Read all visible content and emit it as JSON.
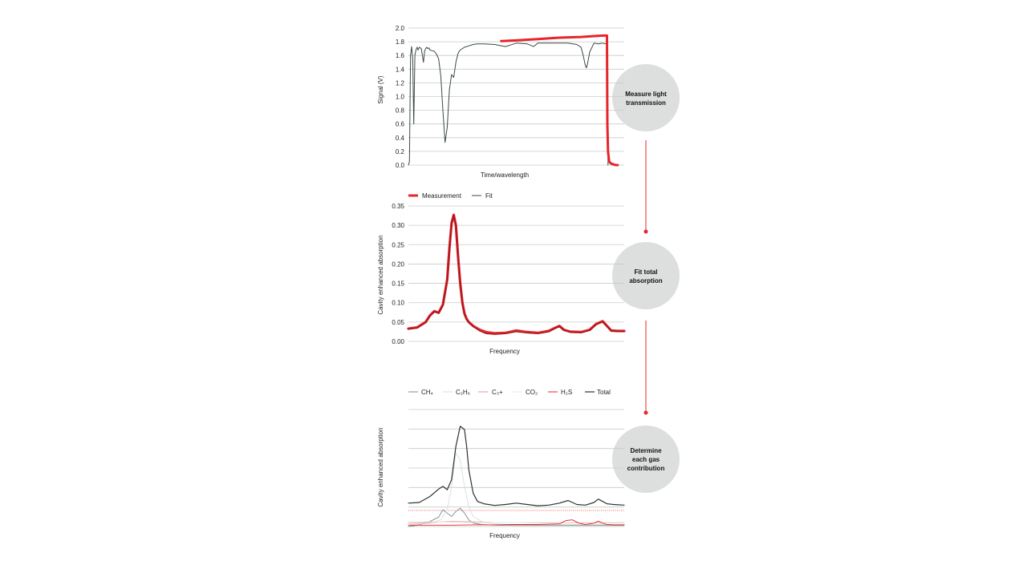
{
  "colors": {
    "measurement": "#e8242b",
    "fit": "#3c4a48",
    "dark_red": "#8b1a1f",
    "grid": "#c6ccca",
    "step_circle": "#dcdfde",
    "connector": "#e8242b"
  },
  "steps": [
    {
      "label_lines": [
        "Measure light",
        "transmission"
      ]
    },
    {
      "label_lines": [
        "Fit total",
        "absorption"
      ]
    },
    {
      "label_lines": [
        "Determine",
        "each gas",
        "contribution"
      ]
    }
  ],
  "chart_data": [
    {
      "type": "line",
      "xlabel": "Time/wavelength",
      "ylabel": "Signal (V)",
      "ylim": [
        0,
        2.0
      ],
      "yticks": [
        "0.0",
        "0.2",
        "0.4",
        "0.6",
        "0.8",
        "1.0",
        "1.2",
        "1.4",
        "1.6",
        "1.8",
        "2.0"
      ],
      "grid": true,
      "xlim": [
        0,
        100
      ],
      "series": [
        {
          "name": "Fit",
          "color": "#3c4a48",
          "x": [
            0,
            0.5,
            1,
            1.5,
            2,
            2.5,
            3,
            3.5,
            4,
            4.5,
            5,
            6,
            7,
            7.5,
            8,
            8.5,
            9,
            9.5,
            10,
            11,
            12,
            13,
            14,
            15,
            16,
            17,
            18,
            19,
            20,
            21,
            22,
            23,
            23.5,
            24,
            24.5,
            25,
            26,
            27,
            28,
            29,
            30,
            32,
            35,
            40,
            45,
            50,
            55,
            58,
            60,
            62,
            64,
            66,
            70,
            74,
            78,
            80,
            81,
            82,
            82.5,
            83,
            84,
            86,
            88,
            90,
            91,
            92,
            92.5
          ],
          "y": [
            0.0,
            0.05,
            1.6,
            1.73,
            1.55,
            0.6,
            1.6,
            1.68,
            1.72,
            1.68,
            1.72,
            1.7,
            1.5,
            1.66,
            1.7,
            1.72,
            1.7,
            1.71,
            1.68,
            1.67,
            1.66,
            1.62,
            1.55,
            1.3,
            0.8,
            0.33,
            0.55,
            1.1,
            1.32,
            1.28,
            1.5,
            1.63,
            1.66,
            1.68,
            1.69,
            1.7,
            1.72,
            1.73,
            1.74,
            1.75,
            1.76,
            1.77,
            1.77,
            1.76,
            1.73,
            1.78,
            1.77,
            1.73,
            1.78,
            1.78,
            1.78,
            1.78,
            1.78,
            1.78,
            1.76,
            1.72,
            1.6,
            1.45,
            1.42,
            1.48,
            1.65,
            1.78,
            1.77,
            1.78,
            1.77,
            1.78,
            0.0
          ]
        },
        {
          "name": "Measurement",
          "color": "#e8242b",
          "x": [
            43,
            50,
            60,
            70,
            80,
            85,
            90,
            92,
            92.2,
            92.5,
            93,
            94,
            95,
            96,
            97
          ],
          "y": [
            1.81,
            1.82,
            1.84,
            1.86,
            1.87,
            1.88,
            1.89,
            1.89,
            0.6,
            0.2,
            0.05,
            0.02,
            0.01,
            0.0,
            0.0
          ]
        }
      ]
    },
    {
      "type": "line",
      "xlabel": "Frequency",
      "ylabel": "Cavity enhanced absorption",
      "ylim": [
        0,
        0.35
      ],
      "yticks": [
        "0.00",
        "0.05",
        "0.10",
        "0.15",
        "0.20",
        "0.25",
        "0.30",
        "0.35"
      ],
      "grid": true,
      "legend_position": "top-left",
      "xlim": [
        0,
        100
      ],
      "series": [
        {
          "name": "Measurement",
          "color": "#e8242b",
          "x": [
            0,
            4,
            8,
            10,
            12,
            14,
            16,
            18,
            19,
            20,
            21,
            22,
            23,
            24,
            25,
            26,
            27,
            28,
            30,
            33,
            36,
            40,
            45,
            50,
            55,
            60,
            65,
            68,
            70,
            72,
            75,
            80,
            84,
            87,
            90,
            92,
            94,
            97,
            100
          ],
          "y": [
            0.033,
            0.036,
            0.05,
            0.067,
            0.078,
            0.074,
            0.095,
            0.16,
            0.24,
            0.305,
            0.327,
            0.3,
            0.22,
            0.15,
            0.1,
            0.072,
            0.058,
            0.05,
            0.04,
            0.03,
            0.024,
            0.021,
            0.022,
            0.028,
            0.024,
            0.022,
            0.027,
            0.035,
            0.04,
            0.03,
            0.025,
            0.024,
            0.03,
            0.045,
            0.052,
            0.04,
            0.028,
            0.027,
            0.027
          ]
        },
        {
          "name": "Fit",
          "color": "#8b1a1f",
          "x": [
            0,
            4,
            8,
            10,
            12,
            14,
            16,
            18,
            19,
            20,
            21,
            22,
            23,
            24,
            25,
            26,
            27,
            28,
            30,
            33,
            36,
            40,
            45,
            50,
            55,
            60,
            65,
            68,
            70,
            72,
            75,
            80,
            84,
            87,
            90,
            92,
            94,
            97,
            100
          ],
          "y": [
            0.032,
            0.035,
            0.049,
            0.066,
            0.077,
            0.073,
            0.094,
            0.158,
            0.238,
            0.303,
            0.326,
            0.298,
            0.218,
            0.148,
            0.099,
            0.071,
            0.057,
            0.049,
            0.039,
            0.027,
            0.02,
            0.018,
            0.02,
            0.025,
            0.022,
            0.02,
            0.025,
            0.034,
            0.039,
            0.029,
            0.024,
            0.023,
            0.029,
            0.044,
            0.051,
            0.039,
            0.027,
            0.026,
            0.026
          ]
        }
      ]
    },
    {
      "type": "line",
      "xlabel": "Frequency",
      "ylabel": "Cavity enhanced absorption",
      "yticks": [],
      "ylim": [
        0,
        0.35
      ],
      "grid": true,
      "legend_position": "top",
      "xlim": [
        0,
        100
      ],
      "series": [
        {
          "name": "CH₄",
          "color": "#7f8c8a",
          "x": [
            0,
            5,
            10,
            14,
            16,
            18,
            20,
            22,
            24,
            26,
            28,
            30,
            34,
            40,
            50,
            60,
            70,
            80,
            90,
            100
          ],
          "y": [
            0.0,
            0.005,
            0.015,
            0.028,
            0.05,
            0.04,
            0.03,
            0.045,
            0.055,
            0.04,
            0.02,
            0.01,
            0.006,
            0.004,
            0.003,
            0.003,
            0.003,
            0.003,
            0.003,
            0.003
          ]
        },
        {
          "name": "C₂H₆",
          "color": "#d9dddc",
          "x": [
            0,
            10,
            15,
            18,
            20,
            22,
            24,
            26,
            28,
            30,
            35,
            40,
            50,
            60,
            70,
            80,
            90,
            100
          ],
          "y": [
            0.005,
            0.01,
            0.02,
            0.05,
            0.12,
            0.22,
            0.2,
            0.12,
            0.06,
            0.03,
            0.012,
            0.008,
            0.006,
            0.006,
            0.006,
            0.006,
            0.006,
            0.006
          ]
        },
        {
          "name": "C₃+",
          "color": "#e59497",
          "x": [
            0,
            10,
            20,
            30,
            40,
            50,
            60,
            70,
            80,
            90,
            100
          ],
          "y": [
            0.01,
            0.012,
            0.015,
            0.014,
            0.012,
            0.012,
            0.011,
            0.011,
            0.011,
            0.011,
            0.011
          ]
        },
        {
          "name": "CO₂",
          "color": "#e6e9e8",
          "x": [
            0,
            10,
            20,
            30,
            40,
            50,
            60,
            70,
            80,
            90,
            100
          ],
          "y": [
            0.015,
            0.014,
            0.013,
            0.012,
            0.012,
            0.012,
            0.012,
            0.012,
            0.012,
            0.012,
            0.012
          ]
        },
        {
          "name": "H₂S",
          "color": "#e8242b",
          "x": [
            0,
            10,
            20,
            30,
            40,
            50,
            60,
            70,
            73,
            76,
            79,
            82,
            86,
            88,
            90,
            92,
            95,
            100
          ],
          "y": [
            0.004,
            0.004,
            0.004,
            0.005,
            0.005,
            0.006,
            0.006,
            0.008,
            0.018,
            0.02,
            0.01,
            0.006,
            0.01,
            0.016,
            0.01,
            0.006,
            0.005,
            0.005
          ]
        },
        {
          "name": "Total",
          "color": "#2b3332",
          "x": [
            0,
            5,
            10,
            14,
            16,
            18,
            20,
            22,
            24,
            26,
            27,
            28,
            30,
            32,
            35,
            40,
            45,
            50,
            55,
            60,
            65,
            70,
            74,
            76,
            78,
            82,
            86,
            88,
            90,
            92,
            95,
            100
          ],
          "y": [
            0.07,
            0.072,
            0.09,
            0.112,
            0.12,
            0.11,
            0.14,
            0.24,
            0.3,
            0.29,
            0.24,
            0.17,
            0.1,
            0.075,
            0.068,
            0.063,
            0.066,
            0.07,
            0.066,
            0.062,
            0.064,
            0.07,
            0.078,
            0.072,
            0.066,
            0.064,
            0.072,
            0.082,
            0.075,
            0.068,
            0.066,
            0.064
          ]
        }
      ]
    }
  ]
}
